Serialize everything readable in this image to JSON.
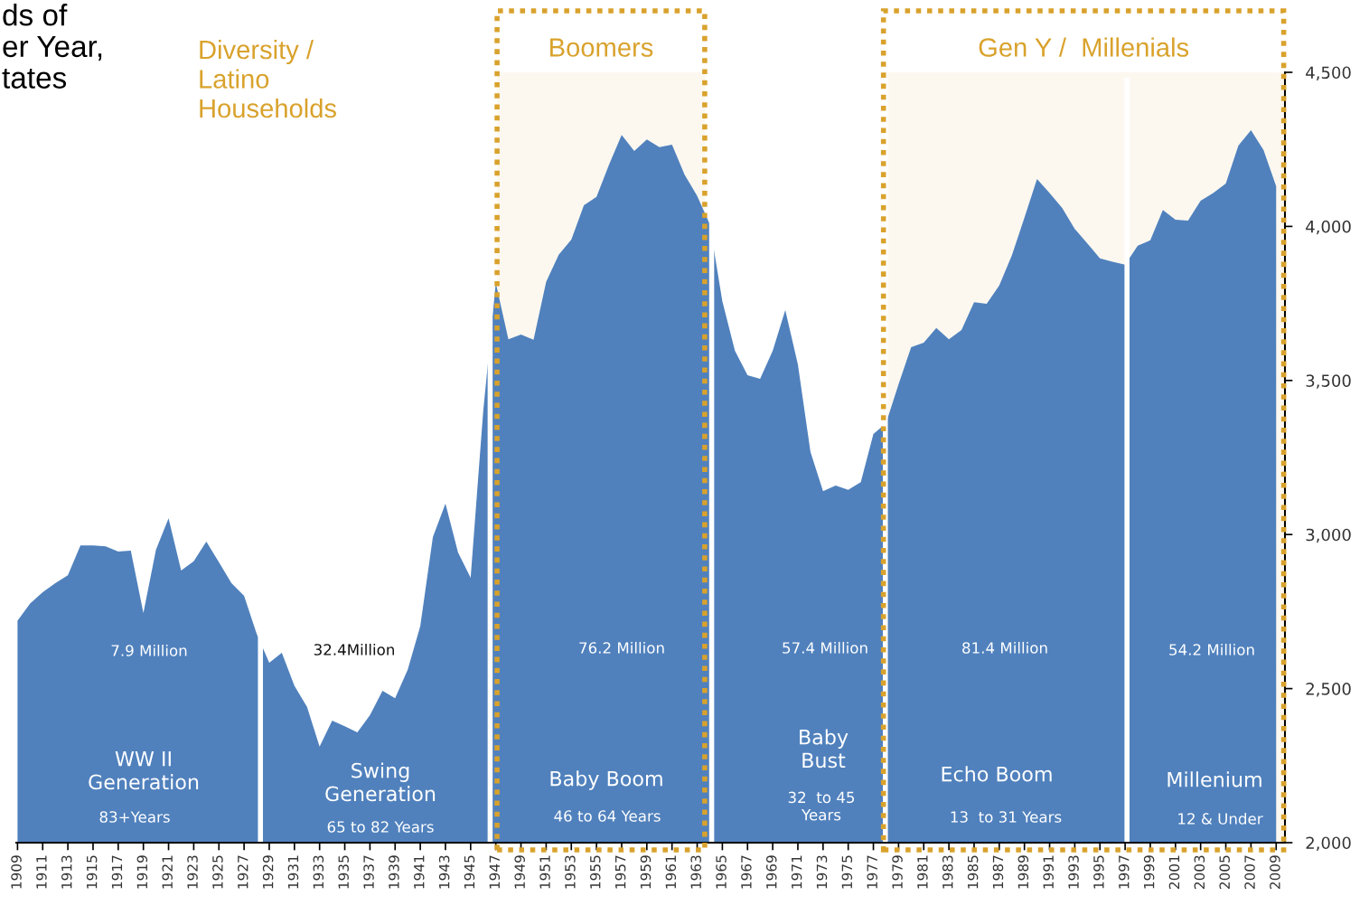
{
  "chart_data": {
    "type": "area",
    "title": "ds of\ner Year,\ntates",
    "x": [
      1909,
      1910,
      1911,
      1912,
      1913,
      1914,
      1915,
      1916,
      1917,
      1918,
      1919,
      1920,
      1921,
      1922,
      1923,
      1924,
      1925,
      1926,
      1927,
      1928,
      1929,
      1930,
      1931,
      1932,
      1933,
      1934,
      1935,
      1936,
      1937,
      1938,
      1939,
      1940,
      1941,
      1942,
      1943,
      1944,
      1945,
      1946,
      1947,
      1948,
      1949,
      1950,
      1951,
      1952,
      1953,
      1954,
      1955,
      1956,
      1957,
      1958,
      1959,
      1960,
      1961,
      1962,
      1963,
      1964,
      1965,
      1966,
      1967,
      1968,
      1969,
      1970,
      1971,
      1972,
      1973,
      1974,
      1975,
      1976,
      1977,
      1978,
      1979,
      1980,
      1981,
      1982,
      1983,
      1984,
      1985,
      1986,
      1987,
      1988,
      1989,
      1990,
      1991,
      1992,
      1993,
      1994,
      1995,
      1996,
      1997,
      1998,
      1999,
      2000,
      2001,
      2002,
      2003,
      2004,
      2005,
      2006,
      2007,
      2008,
      2009
    ],
    "series": [
      {
        "color": "#5081bd",
        "values": [
          2720,
          2776,
          2813,
          2842,
          2868,
          2965,
          2965,
          2962,
          2945,
          2948,
          2745,
          2951,
          3053,
          2883,
          2913,
          2977,
          2910,
          2842,
          2801,
          2678,
          2584,
          2616,
          2509,
          2441,
          2312,
          2396,
          2378,
          2358,
          2414,
          2493,
          2469,
          2561,
          2703,
          2992,
          3100,
          2942,
          2860,
          3400,
          3816,
          3634,
          3649,
          3632,
          3820,
          3908,
          3957,
          4069,
          4096,
          4201,
          4297,
          4245,
          4282,
          4257,
          4265,
          4168,
          4099,
          4007,
          3757,
          3596,
          3517,
          3505,
          3596,
          3728,
          3552,
          3268,
          3141,
          3159,
          3145,
          3170,
          3326,
          3361,
          3488,
          3608,
          3623,
          3670,
          3634,
          3664,
          3754,
          3749,
          3808,
          3906,
          4028,
          4154,
          4108,
          4060,
          3992,
          3945,
          3896,
          3885,
          3876,
          3937,
          3955,
          4053,
          4022,
          4019,
          4083,
          4108,
          4139,
          4262,
          4312,
          4248,
          4130
        ]
      }
    ],
    "xlim": [
      1908.9,
      2009.7
    ],
    "xticks": [
      1909,
      1911,
      1913,
      1915,
      1917,
      1919,
      1921,
      1923,
      1925,
      1927,
      1929,
      1931,
      1933,
      1935,
      1937,
      1939,
      1941,
      1943,
      1945,
      1947,
      1949,
      1951,
      1953,
      1955,
      1957,
      1959,
      1961,
      1963,
      1965,
      1967,
      1969,
      1971,
      1973,
      1975,
      1977,
      1979,
      1981,
      1983,
      1985,
      1987,
      1989,
      1991,
      1993,
      1995,
      1997,
      1999,
      2001,
      2003,
      2005,
      2007,
      2009
    ],
    "ylim": [
      2000,
      4500
    ],
    "yticks": [
      {
        "value": 2000,
        "label": "2,000"
      },
      {
        "value": 2500,
        "label": "2,500"
      },
      {
        "value": 3000,
        "label": "3,000"
      },
      {
        "value": 3500,
        "label": "3,500"
      },
      {
        "value": 4000,
        "label": "4,000"
      },
      {
        "value": 4500,
        "label": "4,500"
      }
    ],
    "grid": false,
    "legend": false,
    "ref_lines": [
      {
        "axis": "x",
        "value": 1928.3,
        "color": "#ffffff"
      },
      {
        "axis": "x",
        "value": 1946.55,
        "color": "#ffffff"
      },
      {
        "axis": "x",
        "value": 1964.15,
        "color": "#ffffff"
      },
      {
        "axis": "x",
        "value": 1977.95,
        "color": "#ffffff"
      },
      {
        "axis": "x",
        "value": 1997.15,
        "color": "#ffffff"
      }
    ],
    "bands": [
      {
        "axis": "x",
        "from": 1947.1,
        "to": 1963.6,
        "label": "Boomers",
        "color": "#d9a22c"
      },
      {
        "axis": "x",
        "from": 1977.8,
        "to": 2009.6,
        "label": "Gen Y /  Millenials",
        "color": "#d9a22c"
      }
    ],
    "annotations": [
      "7.9 Million",
      "WW II\nGeneration",
      "83+Years",
      "32.4Million",
      "Swing\nGeneration",
      "65 to 82 Years",
      "76.2 Million",
      "Baby Boom",
      "46 to 64 Years",
      "57.4 Million",
      "Baby\nBust",
      "32  to 45\nYears",
      "81.4 Million",
      "Echo Boom",
      "13  to 31 Years",
      "54.2 Million",
      "Millenium",
      "12 & Under",
      "Diversity /\nLatino\nHouseholds"
    ]
  }
}
